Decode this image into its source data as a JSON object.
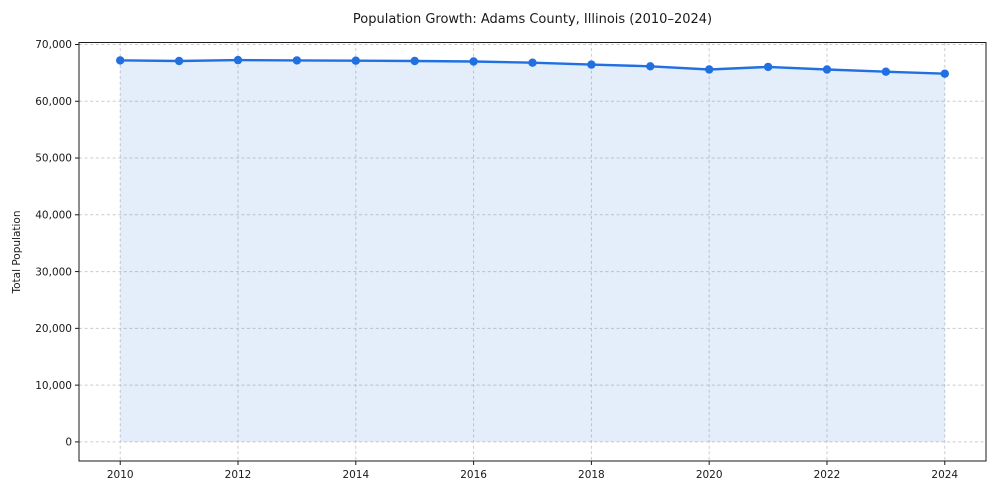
{
  "chart_data": {
    "type": "line",
    "title": "Population Growth: Adams County, Illinois (2010–2024)",
    "xlabel": "",
    "ylabel": "Total Population",
    "x": [
      2010,
      2011,
      2012,
      2013,
      2014,
      2015,
      2016,
      2017,
      2018,
      2019,
      2020,
      2021,
      2022,
      2023,
      2024
    ],
    "series": [
      {
        "name": "Total Population",
        "values": [
          67200,
          67100,
          67250,
          67200,
          67150,
          67100,
          67000,
          66800,
          66450,
          66150,
          65600,
          66050,
          65600,
          65200,
          64850
        ],
        "marker": "circle",
        "area_fill_to_zero": true
      }
    ],
    "xticks": [
      2010,
      2012,
      2014,
      2016,
      2018,
      2020,
      2022,
      2024
    ],
    "yticks": [
      0,
      10000,
      20000,
      30000,
      40000,
      50000,
      60000,
      70000
    ],
    "ytick_labels": [
      "0",
      "10,000",
      "20,000",
      "30,000",
      "40,000",
      "50,000",
      "60,000",
      "70,000"
    ],
    "xlim": [
      2009.3,
      2024.7
    ],
    "ylim": [
      -3365,
      70350
    ],
    "grid": {
      "horizontal": true,
      "vertical": true,
      "style": "dashed"
    },
    "legend": "none",
    "colors": {
      "line": "#2170e2",
      "area": "#2170e2",
      "area_opacity": 0.12,
      "grid": "#cccccc",
      "spine": "#1a1a1a",
      "text": "#1a1a1a",
      "background": "#ffffff"
    }
  }
}
